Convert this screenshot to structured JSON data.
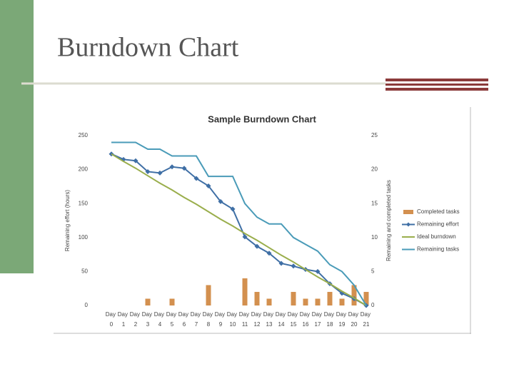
{
  "slide": {
    "title": "Burndown Chart"
  },
  "chart_data": {
    "type": "line",
    "title": "Sample Burndown Chart",
    "y_label": "Remaining effort (hours)",
    "y2_label": "Remaining and completed tasks",
    "categories": [
      "Day 0",
      "Day 1",
      "Day 2",
      "Day 3",
      "Day 4",
      "Day 5",
      "Day 6",
      "Day 7",
      "Day 8",
      "Day 9",
      "Day 10",
      "Day 11",
      "Day 12",
      "Day 13",
      "Day 14",
      "Day 15",
      "Day 16",
      "Day 17",
      "Day 18",
      "Day 19",
      "Day 20",
      "Day 21"
    ],
    "ylim": [
      0,
      250
    ],
    "yticks": [
      0,
      50,
      100,
      150,
      200,
      250
    ],
    "y2lim": [
      0,
      25
    ],
    "y2ticks": [
      0,
      5,
      10,
      15,
      20,
      25
    ],
    "legend": "right",
    "series": [
      {
        "name": "Completed tasks",
        "type": "bar",
        "axis": "y2",
        "color": "#d3904f",
        "values": [
          0,
          0,
          0,
          1,
          0,
          1,
          0,
          0,
          3,
          0,
          0,
          4,
          2,
          1,
          0,
          2,
          1,
          1,
          2,
          1,
          3,
          2
        ]
      },
      {
        "name": "Remaining effort",
        "type": "line",
        "marker": "diamond",
        "color": "#3f6fa5",
        "values": [
          223,
          215,
          213,
          197,
          195,
          204,
          202,
          187,
          176,
          153,
          142,
          101,
          87,
          77,
          62,
          58,
          53,
          50,
          32,
          18,
          10,
          0
        ]
      },
      {
        "name": "Ideal burndown",
        "type": "line",
        "color": "#9aae4c",
        "values": [
          223,
          212,
          202,
          191,
          180,
          170,
          159,
          149,
          138,
          127,
          117,
          106,
          96,
          85,
          74,
          64,
          53,
          42,
          32,
          21,
          11,
          0
        ]
      },
      {
        "name": "Remaining tasks",
        "type": "line",
        "axis": "y2",
        "color": "#4a9bb8",
        "values": [
          24,
          24,
          24,
          23,
          23,
          22,
          22,
          22,
          19,
          19,
          19,
          15,
          13,
          12,
          12,
          10,
          9,
          8,
          6,
          5,
          3,
          0
        ]
      }
    ]
  }
}
